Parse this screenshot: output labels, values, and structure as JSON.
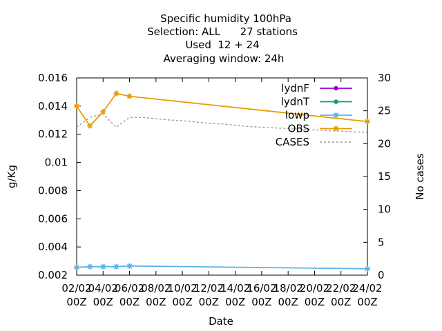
{
  "chart_data": {
    "type": "line",
    "title_lines": [
      "Specific humidity 100hPa",
      "Selection: ALL      27 stations",
      "Used  12 + 24",
      "Averaging window: 24h"
    ],
    "xlabel": "Date",
    "ylabel": "g/Kg",
    "y2label": "No cases",
    "x_ticks": [
      {
        "x": 0,
        "line1": "02/02",
        "line2": "00Z"
      },
      {
        "x": 2,
        "line1": "04/02",
        "line2": "00Z"
      },
      {
        "x": 4,
        "line1": "06/02",
        "line2": "00Z"
      },
      {
        "x": 6,
        "line1": "08/02",
        "line2": "00Z"
      },
      {
        "x": 8,
        "line1": "10/02",
        "line2": "00Z"
      },
      {
        "x": 10,
        "line1": "12/02",
        "line2": "00Z"
      },
      {
        "x": 12,
        "line1": "14/02",
        "line2": "00Z"
      },
      {
        "x": 14,
        "line1": "16/02",
        "line2": "00Z"
      },
      {
        "x": 16,
        "line1": "18/02",
        "line2": "00Z"
      },
      {
        "x": 18,
        "line1": "20/02",
        "line2": "00Z"
      },
      {
        "x": 20,
        "line1": "22/02",
        "line2": "00Z"
      },
      {
        "x": 22,
        "line1": "24/02",
        "line2": "00Z"
      }
    ],
    "xlim": [
      0,
      22
    ],
    "ylim": [
      0.002,
      0.016
    ],
    "y_ticks": [
      "0.002",
      "0.004",
      "0.006",
      "0.008",
      "0.01",
      "0.012",
      "0.014",
      "0.016"
    ],
    "y2lim": [
      0,
      30
    ],
    "y2_ticks": [
      "0",
      "5",
      "10",
      "15",
      "20",
      "25",
      "30"
    ],
    "grid": false,
    "legend_position": "top-right",
    "series": [
      {
        "name": "lydnF",
        "color": "#9400d3",
        "marker": "circle",
        "axis": "y",
        "x": [],
        "y": []
      },
      {
        "name": "lydnT",
        "color": "#009e73",
        "marker": "circle",
        "axis": "y",
        "x": [],
        "y": []
      },
      {
        "name": "lowp",
        "color": "#56b4e9",
        "marker": "star",
        "axis": "y",
        "x": [
          0,
          1,
          2,
          3,
          4,
          22
        ],
        "y": [
          0.00255,
          0.0026,
          0.0026,
          0.0026,
          0.00265,
          0.00245
        ]
      },
      {
        "name": "OBS",
        "color": "#e69f00",
        "marker": "star",
        "axis": "y",
        "x": [
          0,
          1,
          2,
          3,
          4,
          22
        ],
        "y": [
          0.014,
          0.0126,
          0.0136,
          0.0149,
          0.0147,
          0.0129
        ]
      },
      {
        "name": "CASES",
        "color": "#999999",
        "marker": "none",
        "dashed": true,
        "axis": "y2",
        "x": [
          0,
          1,
          2,
          3,
          4,
          5,
          6,
          7,
          8,
          9,
          10,
          11,
          12,
          13,
          14,
          15,
          16,
          17,
          18,
          19,
          20,
          21,
          22
        ],
        "y": [
          22.5,
          24.0,
          24.5,
          22.5,
          24.0,
          24.0,
          23.8,
          23.6,
          23.5,
          23.3,
          23.1,
          23.0,
          22.8,
          22.6,
          22.5,
          22.4,
          22.3,
          22.2,
          22.1,
          22.0,
          21.9,
          21.8,
          21.7
        ]
      }
    ]
  }
}
